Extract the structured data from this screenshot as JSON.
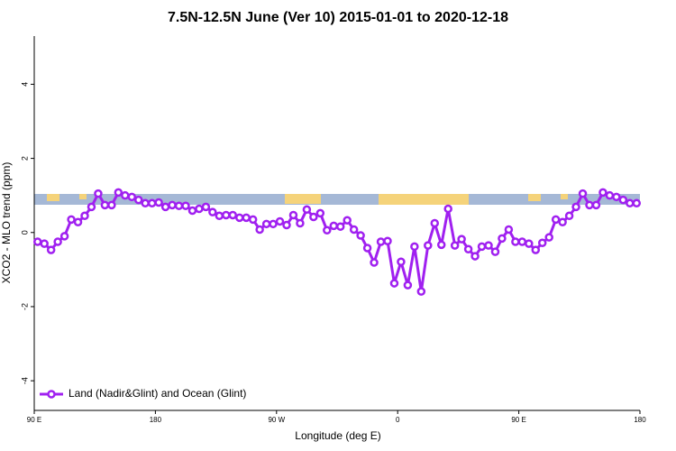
{
  "chart_data": {
    "type": "line",
    "title": "7.5N-12.5N June (Ver 10)   2015-01-01 to 2020-12-18",
    "x_label": "Longitude (deg E)",
    "y_label": "XCO2 - MLO trend (ppm)",
    "x": [
      92.5,
      97.5,
      102.5,
      107.5,
      112.5,
      117.5,
      122.5,
      127.5,
      132.5,
      137.5,
      142.5,
      147.5,
      152.5,
      157.5,
      162.5,
      167.5,
      172.5,
      177.5,
      182.5,
      187.5,
      192.5,
      197.5,
      202.5,
      207.5,
      212.5,
      217.5,
      222.5,
      227.5,
      232.5,
      237.5,
      242.5,
      247.5,
      252.5,
      257.5,
      262.5,
      267.5,
      272.5,
      277.5,
      282.5,
      287.5,
      292.5,
      297.5,
      302.5,
      307.5,
      312.5,
      317.5,
      322.5,
      327.5,
      332.5,
      337.5,
      342.5,
      347.5,
      352.5,
      357.5,
      362.5,
      367.5,
      372.5,
      377.5,
      382.5,
      387.5,
      392.5,
      397.5,
      402.5,
      407.5,
      412.5,
      417.5,
      422.5,
      427.5,
      432.5,
      437.5,
      442.5,
      447.5,
      452.5,
      457.5,
      462.5,
      467.5,
      472.5,
      477.5,
      482.5,
      487.5,
      492.5,
      497.5,
      502.5,
      507.5,
      512.5,
      517.5,
      522.5,
      527.5,
      532.5,
      537.5
    ],
    "series": [
      {
        "name": "Land (Nadir&Glint) and Ocean (Glint)",
        "color": "#a020f0",
        "values": [
          -0.25,
          -0.3,
          -0.47,
          -0.25,
          -0.1,
          0.35,
          0.28,
          0.45,
          0.69,
          1.05,
          0.74,
          0.74,
          1.08,
          1.0,
          0.96,
          0.88,
          0.79,
          0.79,
          0.81,
          0.69,
          0.74,
          0.72,
          0.72,
          0.59,
          0.64,
          0.69,
          0.55,
          0.45,
          0.47,
          0.47,
          0.4,
          0.4,
          0.35,
          0.08,
          0.23,
          0.23,
          0.3,
          0.2,
          0.47,
          0.25,
          0.62,
          0.42,
          0.52,
          0.06,
          0.18,
          0.16,
          0.33,
          0.08,
          -0.08,
          -0.42,
          -0.81,
          -0.25,
          -0.23,
          -1.37,
          -0.79,
          -1.42,
          -0.38,
          -1.59,
          -0.35,
          0.25,
          -0.33,
          0.64,
          -0.35,
          -0.18,
          -0.45,
          -0.64,
          -0.38,
          -0.35,
          -0.52,
          -0.16,
          0.08,
          -0.25,
          -0.25,
          -0.3,
          -0.47,
          -0.28,
          -0.13,
          0.35,
          0.28,
          0.45,
          0.69,
          1.05,
          0.74,
          0.74,
          1.08,
          1.0,
          0.96,
          0.88,
          0.79,
          0.79
        ]
      }
    ],
    "xlim": [
      90,
      540
    ],
    "xticks": [
      {
        "value": 90,
        "label": "90 E"
      },
      {
        "value": 180,
        "label": "180"
      },
      {
        "value": 270,
        "label": "90 W"
      },
      {
        "value": 360,
        "label": "0"
      },
      {
        "value": 450,
        "label": "90 E"
      },
      {
        "value": 540,
        "label": "180"
      }
    ],
    "ylim": [
      -4.8,
      5.3
    ],
    "yticks": [
      -4,
      -2,
      0,
      2,
      4
    ],
    "legend": "bottom-left"
  }
}
